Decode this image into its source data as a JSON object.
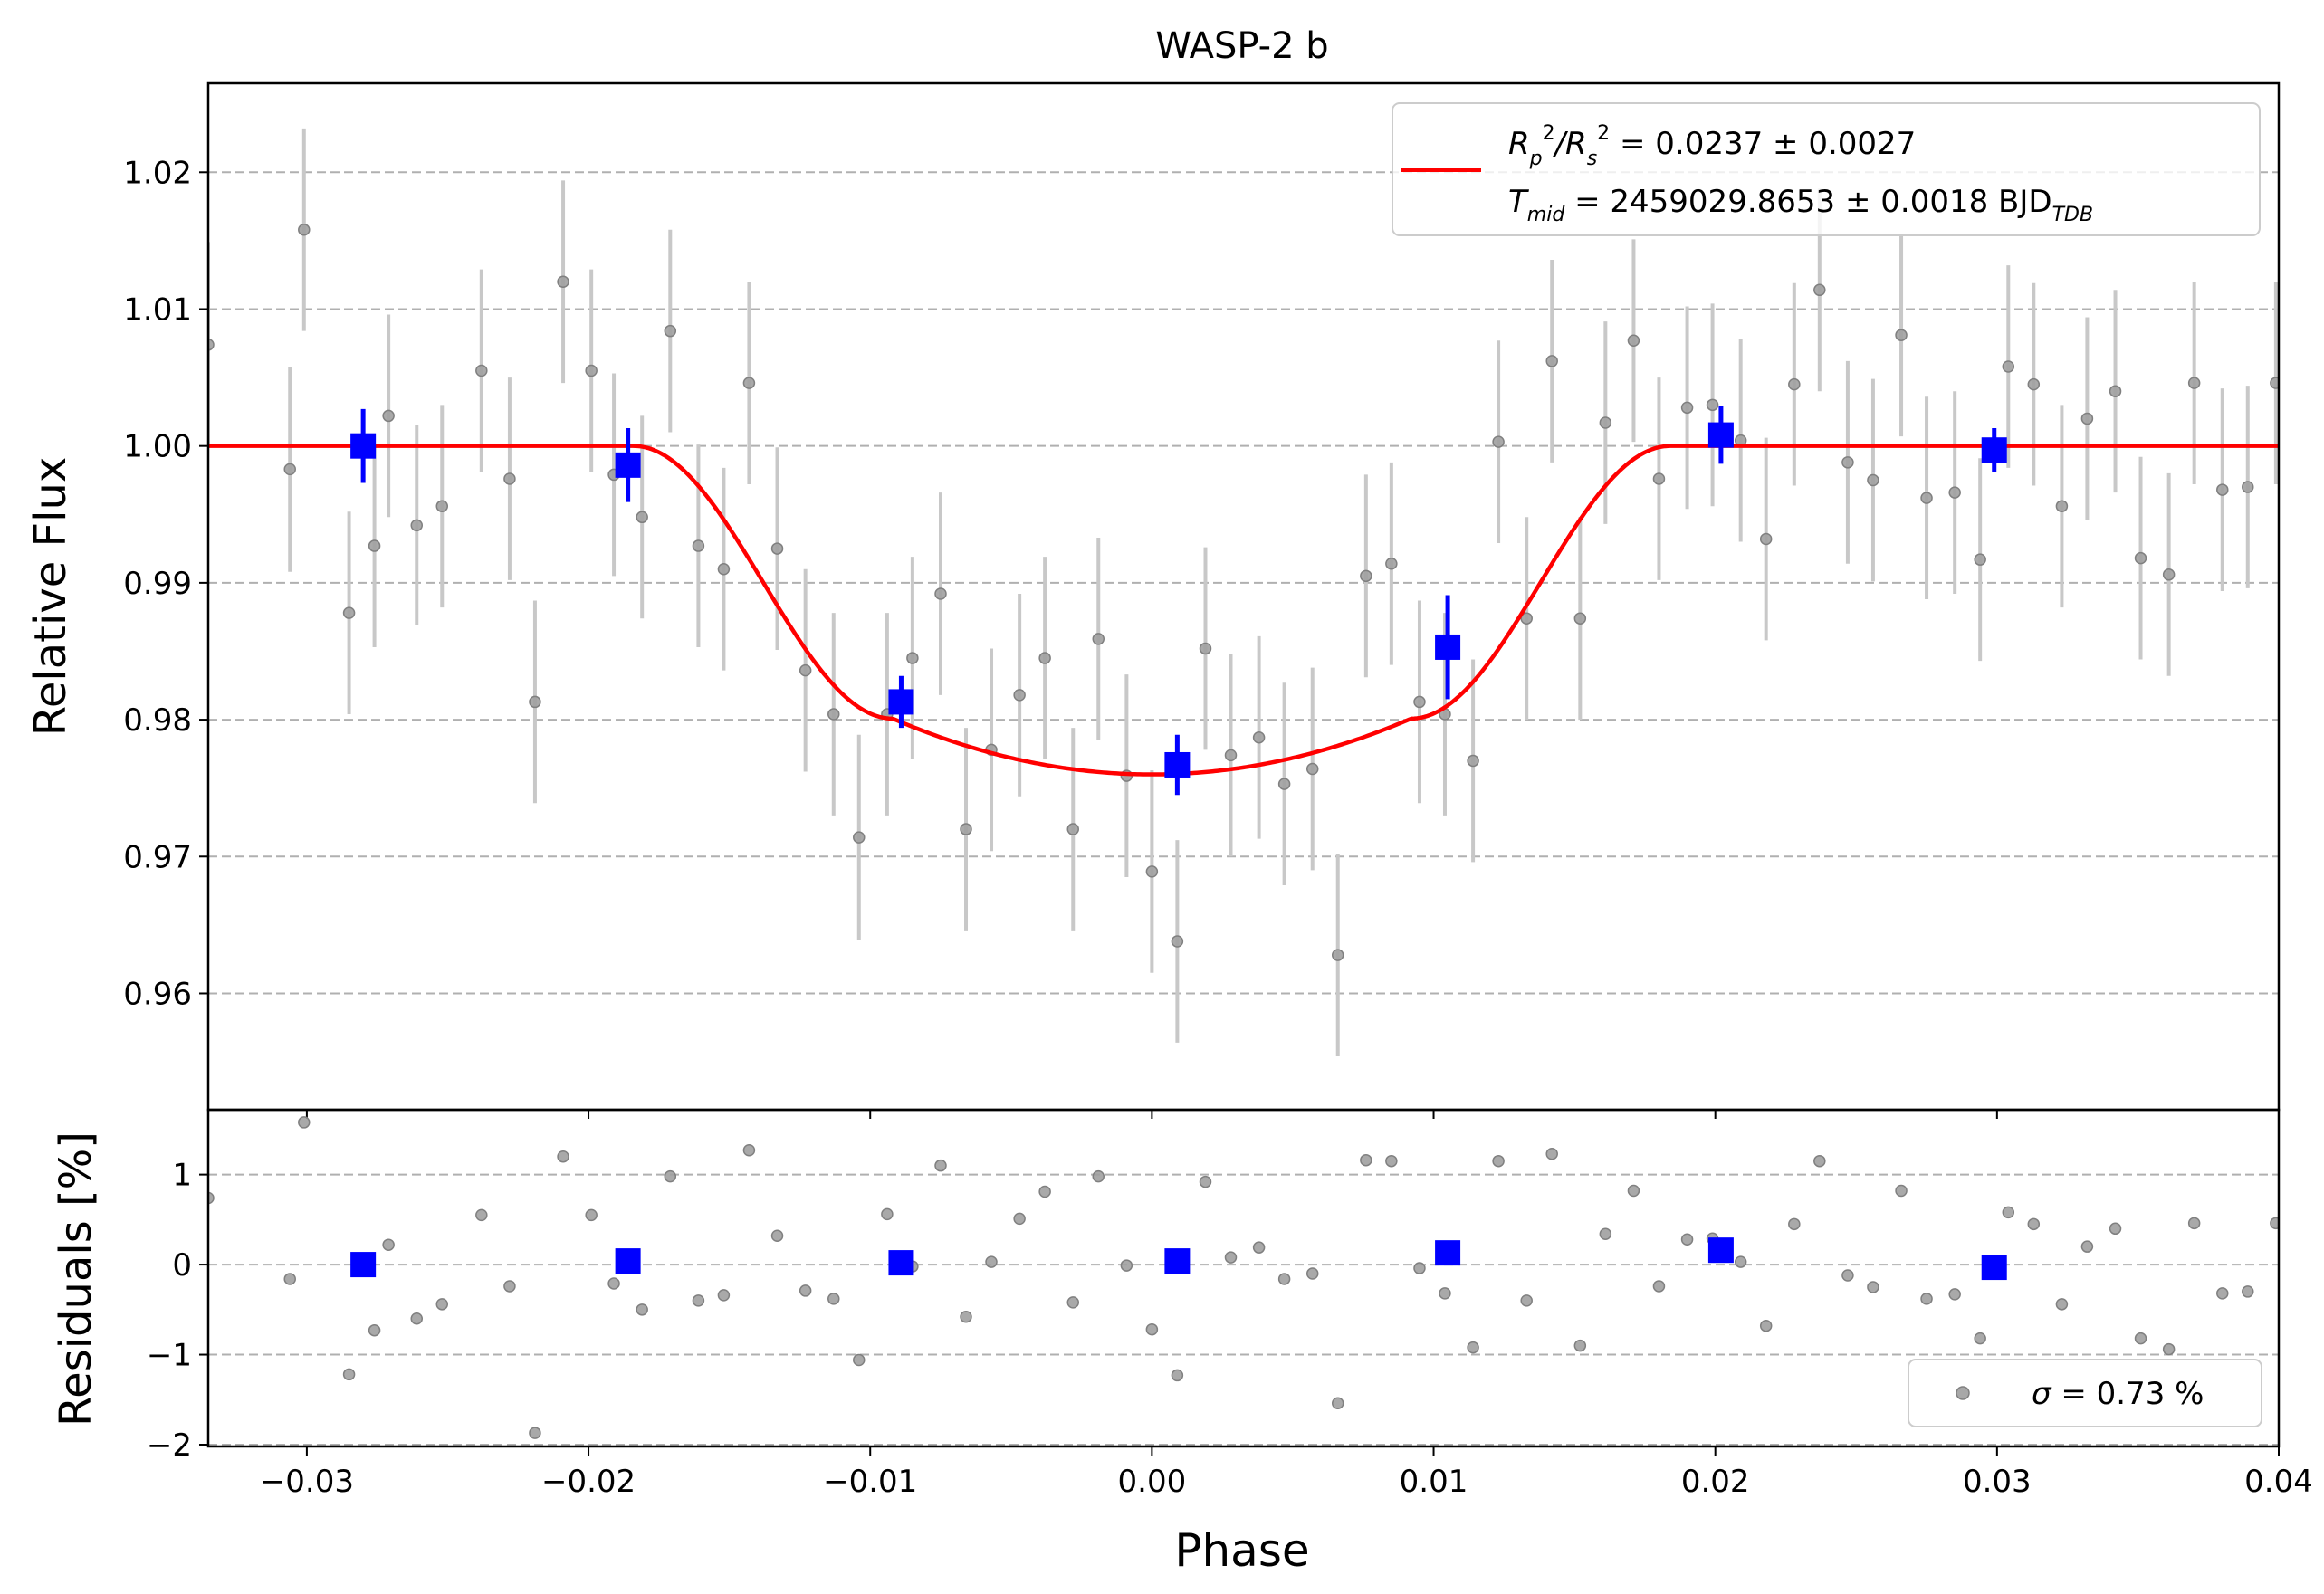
{
  "chart_data": [
    {
      "type": "scatter",
      "title": "WASP-2 b",
      "xlabel": "",
      "ylabel": "Relative Flux",
      "xlim": [
        -0.0335,
        0.04
      ],
      "ylim": [
        0.9515,
        1.0265
      ],
      "xticks": [
        -0.03,
        -0.02,
        -0.01,
        0.0,
        0.01,
        0.02,
        0.03,
        0.04
      ],
      "yticks": [
        0.96,
        0.97,
        0.98,
        0.99,
        1.0,
        1.01,
        1.02
      ],
      "ytick_labels": [
        "0.96",
        "0.97",
        "0.98",
        "0.99",
        "1.00",
        "1.01",
        "1.02"
      ],
      "grid": "horizontal dashed",
      "legend": {
        "placement": "top-right",
        "line1": {
          "lhs": "R",
          "sub1": "p",
          "sup1": "2",
          "slash": "/R",
          "sub2": "s",
          "sup2": "2",
          "rhs": " = 0.0237 ± 0.0027"
        },
        "line2": {
          "lhs": "T",
          "sub": "mid",
          "rhs": " = 2459029.8653 ± 0.0018 BJD",
          "sub2": "TDB"
        }
      },
      "series": [
        {
          "kind": "raw",
          "color": "#808080",
          "x": [
            -0.0335,
            -0.0306,
            -0.0301,
            -0.0285,
            -0.0276,
            -0.0271,
            -0.0261,
            -0.0252,
            -0.0238,
            -0.0228,
            -0.0219,
            -0.0209,
            -0.0199,
            -0.0191,
            -0.0181,
            -0.0171,
            -0.0161,
            -0.0152,
            -0.0143,
            -0.0133,
            -0.0123,
            -0.0113,
            -0.0104,
            -0.0094,
            -0.0085,
            -0.0075,
            -0.0066,
            -0.0057,
            -0.0047,
            -0.0038,
            -0.0028,
            -0.0019,
            -0.0009,
            0.0,
            0.0009,
            0.0019,
            0.0028,
            0.0038,
            0.0047,
            0.0057,
            0.0066,
            0.0076,
            0.0085,
            0.0095,
            0.0104,
            0.0114,
            0.0123,
            0.0133,
            0.0142,
            0.0152,
            0.0161,
            0.0171,
            0.018,
            0.019,
            0.0199,
            0.0209,
            0.0218,
            0.0228,
            0.0237,
            0.0247,
            0.0256,
            0.0266,
            0.0275,
            0.0285,
            0.0294,
            0.0304,
            0.0313,
            0.0323,
            0.0332,
            0.0342,
            0.0351,
            0.0361,
            0.037,
            0.038,
            0.0389,
            0.0399
          ],
          "y": [
            1.0074,
            0.9983,
            1.0158,
            0.9878,
            0.9927,
            1.0022,
            0.9942,
            0.9956,
            1.0055,
            0.9976,
            0.9813,
            1.012,
            1.0055,
            0.9979,
            0.9948,
            1.0084,
            0.9927,
            0.991,
            1.0046,
            0.9925,
            0.9836,
            0.9804,
            0.9714,
            0.9804,
            0.9845,
            0.9892,
            0.972,
            0.9778,
            0.9818,
            0.9845,
            0.972,
            0.9859,
            0.9759,
            0.9689,
            0.9638,
            0.9852,
            0.9774,
            0.9787,
            0.9753,
            0.9764,
            0.9628,
            0.9905,
            0.9914,
            0.9813,
            0.9804,
            0.977,
            1.0003,
            0.9874,
            1.0062,
            0.9874,
            1.0017,
            1.0077,
            0.9976,
            1.0028,
            1.003,
            1.0004,
            0.9932,
            1.0045,
            1.0114,
            0.9988,
            0.9975,
            1.0081,
            0.9962,
            0.9966,
            0.9917,
            1.0058,
            1.0045,
            0.9956,
            1.002,
            1.004,
            0.9918,
            0.9906,
            1.0046,
            0.9968,
            0.997,
            1.0046
          ],
          "yerr": [
            0.0075,
            0.0075,
            0.0074,
            0.0074,
            0.0074,
            0.0074,
            0.0073,
            0.0074,
            0.0074,
            0.0074,
            0.0074,
            0.0074,
            0.0074,
            0.0074,
            0.0074,
            0.0074,
            0.0074,
            0.0074,
            0.0074,
            0.0074,
            0.0074,
            0.0074,
            0.0075,
            0.0074,
            0.0074,
            0.0074,
            0.0074,
            0.0074,
            0.0074,
            0.0074,
            0.0074,
            0.0074,
            0.0074,
            0.0074,
            0.0074,
            0.0074,
            0.0074,
            0.0074,
            0.0074,
            0.0074,
            0.0074,
            0.0074,
            0.0074,
            0.0074,
            0.0074,
            0.0074,
            0.0074,
            0.0074,
            0.0074,
            0.0074,
            0.0074,
            0.0074,
            0.0074,
            0.0074,
            0.0074,
            0.0074,
            0.0074,
            0.0074,
            0.0074,
            0.0074,
            0.0074,
            0.0074,
            0.0074,
            0.0074,
            0.0074,
            0.0074,
            0.0074,
            0.0074,
            0.0074,
            0.0074,
            0.0074,
            0.0074,
            0.0074,
            0.0074,
            0.0074,
            0.0074
          ]
        },
        {
          "kind": "binned",
          "color": "#0000ff",
          "x": [
            -0.028,
            -0.0186,
            -0.0089,
            0.0009,
            0.0105,
            0.0202,
            0.0299
          ],
          "y": [
            1.0,
            0.9986,
            0.9813,
            0.9767,
            0.9853,
            1.0008,
            0.9997
          ],
          "yerr": [
            0.0027,
            0.0027,
            0.0019,
            0.0022,
            0.0038,
            0.0021,
            0.0016
          ]
        },
        {
          "kind": "model",
          "color": "#ff0000",
          "transit": {
            "t1": -0.0184,
            "t2": -0.0092,
            "t3": 0.0092,
            "t4": 0.0184,
            "depth": 0.024
          }
        }
      ]
    },
    {
      "type": "scatter",
      "xlabel": "Phase",
      "ylabel": "Residuals [%]",
      "xlim": [
        -0.0335,
        0.04
      ],
      "ylim": [
        -2.02,
        1.72
      ],
      "xticks": [
        -0.03,
        -0.02,
        -0.01,
        0.0,
        0.01,
        0.02,
        0.03,
        0.04
      ],
      "xtick_labels": [
        "−0.03",
        "−0.02",
        "−0.01",
        "0.00",
        "0.01",
        "0.02",
        "0.03",
        "0.04"
      ],
      "yticks": [
        -2,
        -1,
        0,
        1
      ],
      "ytick_labels": [
        "−2",
        "−1",
        "0",
        "1"
      ],
      "grid": "horizontal dashed",
      "legend": {
        "placement": "bottom-right",
        "label_sym": "σ",
        "label_rest": " = 0.73 %"
      },
      "series": [
        {
          "kind": "raw",
          "color": "#808080",
          "x": [
            -0.0335,
            -0.0306,
            -0.0301,
            -0.0285,
            -0.0276,
            -0.0271,
            -0.0261,
            -0.0252,
            -0.0238,
            -0.0228,
            -0.0219,
            -0.0209,
            -0.0199,
            -0.0191,
            -0.0181,
            -0.0171,
            -0.0161,
            -0.0152,
            -0.0143,
            -0.0133,
            -0.0123,
            -0.0113,
            -0.0104,
            -0.0094,
            -0.0085,
            -0.0075,
            -0.0066,
            -0.0057,
            -0.0047,
            -0.0038,
            -0.0028,
            -0.0019,
            -0.0009,
            0.0,
            0.0009,
            0.0019,
            0.0028,
            0.0038,
            0.0047,
            0.0057,
            0.0066,
            0.0076,
            0.0085,
            0.0095,
            0.0104,
            0.0114,
            0.0123,
            0.0133,
            0.0142,
            0.0152,
            0.0161,
            0.0171,
            0.018,
            0.019,
            0.0199,
            0.0209,
            0.0218,
            0.0228,
            0.0237,
            0.0247,
            0.0256,
            0.0266,
            0.0275,
            0.0285,
            0.0294,
            0.0304,
            0.0313,
            0.0323,
            0.0332,
            0.0342,
            0.0351,
            0.0361,
            0.037,
            0.038,
            0.0389,
            0.0399
          ],
          "y": [
            0.74,
            -0.16,
            1.58,
            -1.22,
            -0.73,
            0.22,
            -0.6,
            -0.44,
            0.55,
            -0.24,
            -1.87,
            1.2,
            0.55,
            -0.21,
            -0.5,
            0.98,
            -0.4,
            -0.34,
            1.27,
            0.32,
            -0.29,
            -0.38,
            -1.06,
            0.56,
            -0.02,
            1.1,
            -0.58,
            0.03,
            0.51,
            0.81,
            -0.42,
            0.98,
            -0.01,
            -0.72,
            -1.23,
            0.92,
            0.08,
            0.19,
            -0.16,
            -0.1,
            -1.54,
            1.16,
            1.15,
            -0.04,
            -0.32,
            -0.92,
            1.15,
            -0.4,
            1.23,
            -0.9,
            0.34,
            0.82,
            -0.24,
            0.28,
            0.29,
            0.03,
            -0.68,
            0.45,
            1.15,
            -0.12,
            -0.25,
            0.82,
            -0.38,
            -0.33,
            -0.82,
            0.58,
            0.45,
            -0.44,
            0.2,
            0.4,
            -0.82,
            -0.94,
            0.46,
            -0.32,
            -0.3,
            0.46
          ]
        },
        {
          "kind": "binned",
          "color": "#0000ff",
          "x": [
            -0.028,
            -0.0186,
            -0.0089,
            0.0009,
            0.0105,
            0.0202,
            0.0299
          ],
          "y": [
            0.0,
            0.04,
            0.02,
            0.04,
            0.13,
            0.16,
            -0.03
          ]
        }
      ]
    }
  ]
}
